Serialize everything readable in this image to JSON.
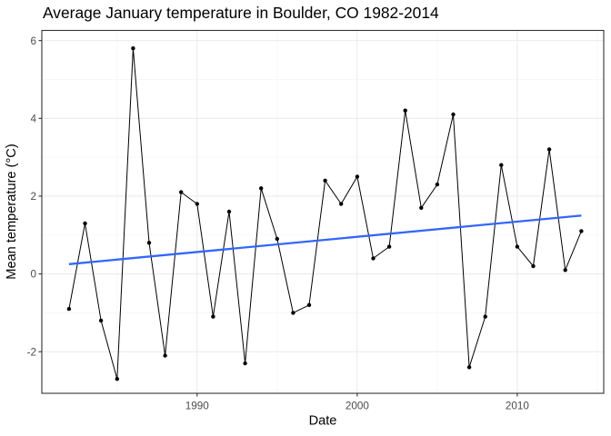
{
  "chart_data": {
    "type": "line",
    "title": "Average January temperature in Boulder, CO 1982-2014",
    "xlabel": "Date",
    "ylabel": "Mean temperature (°C)",
    "x": [
      1982,
      1983,
      1984,
      1985,
      1986,
      1987,
      1988,
      1989,
      1990,
      1991,
      1992,
      1993,
      1994,
      1995,
      1996,
      1997,
      1998,
      1999,
      2000,
      2001,
      2002,
      2003,
      2004,
      2005,
      2006,
      2007,
      2008,
      2009,
      2010,
      2011,
      2012,
      2013,
      2014
    ],
    "series": [
      {
        "name": "observed-mean-january-temperature",
        "color": "#000000",
        "values": [
          -0.9,
          1.3,
          -1.2,
          -2.7,
          5.8,
          0.8,
          -2.1,
          2.1,
          1.8,
          -1.1,
          1.6,
          -2.3,
          2.2,
          0.9,
          -1.0,
          -0.8,
          2.4,
          1.8,
          2.5,
          0.4,
          0.7,
          4.2,
          1.7,
          2.3,
          4.1,
          -2.4,
          -1.1,
          2.8,
          0.7,
          0.2,
          3.2,
          0.1,
          1.1
        ]
      }
    ],
    "trend": {
      "name": "linear-fit",
      "color": "#3366FF",
      "x": [
        1982,
        2014
      ],
      "y": [
        0.25,
        1.5
      ]
    },
    "x_ticks": {
      "values": [
        1990,
        2000,
        2010
      ],
      "labels": [
        "1990",
        "2000",
        "2010"
      ]
    },
    "y_ticks": {
      "values": [
        6,
        4,
        2,
        0,
        -2
      ],
      "labels": [
        "6",
        "4",
        "2",
        "0",
        "-2"
      ]
    },
    "x_minor": [
      1985,
      1995,
      2005,
      2015
    ],
    "y_minor": [
      5,
      3,
      1,
      -1,
      -3
    ],
    "xlim": [
      1980.3,
      2015.4
    ],
    "ylim": [
      -3.07,
      6.26
    ],
    "grid": true,
    "legend_position": "none",
    "colors": {
      "background": "#FFFFFF",
      "panel_border": "#333333",
      "grid_major": "#EBEBEB",
      "grid_minor": "#F6F6F6",
      "tick": "#333333",
      "tick_label": "#4D4D4D",
      "text": "#000000"
    }
  }
}
